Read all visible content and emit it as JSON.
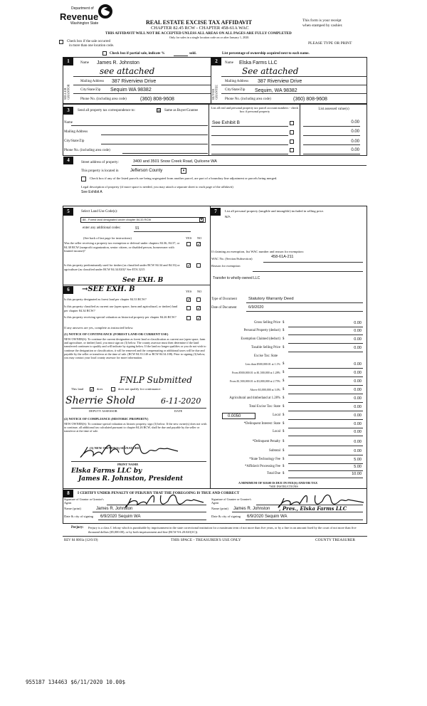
{
  "header": {
    "agency_line1": "Department of",
    "agency_name": "Revenue",
    "agency_state": "Washington State",
    "title": "REAL ESTATE EXCISE TAX AFFIDAVIT",
    "subtitle": "CHAPTER 82.45 RCW - CHAPTER 458-61A WAC",
    "warning": "THIS AFFIDAVIT WILL NOT BE ACCEPTED UNLESS ALL AREAS ON ALL PAGES ARE FULLY COMPLETED",
    "single_location_note": "Only for sales in a single location code on or after January 1, 2020.",
    "receipt_note_1": "This form is your receipt",
    "receipt_note_2": "when stamped by cashier.",
    "print_note": "PLEASE TYPE OR PRINT",
    "multi_location_check": "Check box if the sale occurred",
    "multi_location_check_2": "in more than one location code.",
    "partial_sale": "Check box if partial sale, indicate %",
    "partial_sold": "sold.",
    "ownership_note": "List percentage of ownership acquired next to each name."
  },
  "seller": {
    "num": "1",
    "side_label": "SELLER GRANTOR",
    "name_label": "Name",
    "name": "James R. Johnston",
    "handwritten": "see attached",
    "address_label": "Mailing Address",
    "address": "387 Riverview Drive",
    "city_label": "City/State/Zip",
    "city": "Sequim WA  98382",
    "phone_label": "Phone No. (including area code)",
    "phone": "(360) 808-9608"
  },
  "buyer": {
    "num": "2",
    "side_label": "BUYER GRANTEE",
    "name_label": "Name",
    "name": "Elska Farms LLC",
    "handwritten": "See attached",
    "address_label": "Mailing Address",
    "address": "387 Riverview Drive",
    "city_label": "City/State/Zip",
    "city": "Sequim, WA  98382",
    "phone_label": "Phone No. (including area code)",
    "phone": "(360) 808-9608"
  },
  "section3": {
    "num": "3",
    "label": "Send all property tax correspondence to:",
    "same_as": "Same as Buyer/Grantee",
    "same_checked": "☒",
    "name_label": "Name",
    "address_label": "Mailing Address",
    "city_label": "City/State/Zip",
    "phone_label": "Phone No. (including area code)",
    "parcel_header": "List all real and personal property tax parcel account numbers - check box if personal property",
    "assessed_header": "List assessed value(s)",
    "parcels": [
      {
        "number": "See Exhibit B",
        "value": "0.00"
      },
      {
        "number": "",
        "value": "0.00"
      },
      {
        "number": "",
        "value": "0.00"
      },
      {
        "number": "",
        "value": "0.00"
      }
    ]
  },
  "section4": {
    "num": "4",
    "street_label": "Street address of property:",
    "street": "3400 and 3501 Snow Creek Road, Quilcene WA",
    "located_label": "This property is located in",
    "county": "Jefferson County",
    "segregate_check": "Check box if any of the listed parcels are being segregated from another parcel, are part of a boundary line adjustment or parcels being merged.",
    "legal_label": "Legal description of property (if more space is needed, you may attach a separate sheet to each page of the affidavit)",
    "legal": "See Exhibit A"
  },
  "section5": {
    "num": "5",
    "label": "Select Land Use Code(s):",
    "code": "88 - Forest land designated under chapter 84.33 RCW",
    "additional_label": "enter any additional codes:",
    "additional": "91",
    "see_back": "(See back of last page for instructions)",
    "yes": "YES",
    "no": "NO",
    "q1": "Was the seller receiving a property tax exemption or deferral under chapters 84.36, 84.37, or 84.38 RCW (nonprofit organization, senior citizen, or disabled person, homeowner with limited income)?",
    "q1_answer": "no",
    "q2": "Is this property predominantly used for timber (as classified under RCW 84.34 and 84.33) or agriculture (as classified under RCW 84.34.020)? See ETA 3215",
    "q2_answer": "yes",
    "q2_handwritten": "See EXH. B"
  },
  "section6": {
    "num": "6",
    "handwritten": "→SEE EXH. B",
    "yes": "YES",
    "no": "NO",
    "q1": "Is this property designated as forest land per chapter 84.33 RCW?",
    "q1_answer": "yes",
    "q2": "Is this property classified as current use (open space, farm and agricultural, or timber) land per chapter 84.34 RCW?",
    "q2_answer": "no",
    "q3": "Is this property receiving special valuation as historical property per chapter 84.26 RCW?",
    "q3_answer": "no",
    "if_yes": "If any answers are yes, complete as instructed below.",
    "notice1_title": "(1) NOTICE OF CONTINUANCE (FOREST LAND OR CURRENT USE)",
    "notice1_text": "NEW OWNER(S): To continue the current designation as forest land or classification as current use (open space, farm and agriculture, or timber) land, you must sign on (3) below. The county assessor must then determine if the land transferred continues to qualify and will indicate by signing below. If the land no longer qualifies or you do not wish to continue the designation or classification, it will be removed and the compensating or additional taxes will be due and payable by the seller or transferor at the time of sale. (RCW 84.33.140 or RCW 84.34.108). Prior to signing (3) below, you may contact your local county assessor for more information.",
    "fnlp_handwritten": "FNLP Submitted",
    "this_land": "This land",
    "does": "does",
    "does_not": "does not qualify for continuance.",
    "assessor_handwritten": "Sherrie Shold",
    "assessor_date": "6-11-2020",
    "deputy_label": "DEPUTY ASSESSOR",
    "date_label": "DATE",
    "notice2_title": "(2) NOTICE OF COMPLIANCE (HISTORIC PROPERTY)",
    "notice2_text": "NEW OWNER(S): To continue special valuation as historic property, sign (3) below. If the new owner(s) does not wish to continue, all additional tax calculated pursuant to chapter 84.26 RCW, shall be due and payable by the seller or transferor at the time of sale.",
    "signature_label": "(3) NEW OWNER(S) SIGNATURE",
    "print_name_label": "PRINT NAME",
    "print_name_1": "Elska Farms LLC by",
    "print_name_2": "James R. Johnston, President"
  },
  "section7": {
    "num": "7",
    "label": "List all personal property (tangible and intangible) included in selling price.",
    "personal_property": "N/A",
    "exemption_label": "If claiming an exemption, list WAC number and reason for exemption:",
    "wac_label": "WAC No. (Section/Subsection)",
    "wac": "458-61A-211",
    "reason_label": "Reason for exemption",
    "reason": "Transfer to wholly-owned LLC",
    "doc_type_label": "Type of Document",
    "doc_type": "Statutory Warranty Deed",
    "doc_date_label": "Date of Document",
    "doc_date": "6/9/2020",
    "local_rate": "0.0050",
    "excise_heading": "Excise Tax: State",
    "amounts": [
      {
        "label": "Gross Selling Price",
        "value": "0.00"
      },
      {
        "label": "Personal Property (deduct)",
        "value": "0.00"
      },
      {
        "label": "Exemption Claimed (deduct)",
        "value": "0.00"
      },
      {
        "label": "Taxable Selling Price",
        "value": "0.00"
      },
      {
        "label": "Less than $500,000.01 at 1.1%",
        "value": "0.00"
      },
      {
        "label": "From $500,000.01 to $1,500,000 at 1.28%",
        "value": "0.00"
      },
      {
        "label": "From $1,500,000.01 to $3,000,000 at 2.75%",
        "value": "0.00"
      },
      {
        "label": "Above $3,000,000 at 3.0%",
        "value": "0.00"
      },
      {
        "label": "Agricultural and timberland at 1.28%",
        "value": "0.00"
      },
      {
        "label": "Total Excise Tax: State",
        "value": "0.00"
      },
      {
        "label": "Local",
        "value": "0.00"
      },
      {
        "label": "*Delinquent Interest: State",
        "value": "0.00"
      },
      {
        "label": "Local",
        "value": "0.00"
      },
      {
        "label": "*Delinquent Penalty",
        "value": "0.00"
      },
      {
        "label": "Subtotal",
        "value": "0.00"
      },
      {
        "label": "*State Technology Fee",
        "value": "5.00"
      },
      {
        "label": "*Affidavit Processing Fee",
        "value": "5.00"
      },
      {
        "label": "Total Due",
        "value": "10.00"
      }
    ],
    "currency": "$",
    "minimum_note": "A MINIMUM OF $10.00 IS DUE IN FEE(S) AND/OR TAX",
    "see_instructions": "*SEE INSTRUCTIONS"
  },
  "section8": {
    "num": "8",
    "certify": "I CERTIFY UNDER PENALTY OF PERJURY THAT THE FOREGOING IS TRUE AND CORRECT",
    "grantor_sig_label": "Signature of Grantor or Grantor's Agent",
    "grantee_sig_label": "Signature of Grantee or Grantee's Agent",
    "name_label": "Name (print)",
    "grantor_name": "James R. Johnston",
    "grantee_name": "James R. Johnston",
    "grantee_handwritten": ", Pres., Elska Farms LLC",
    "date_label": "Date & city of signing",
    "grantor_date": "6/9/2020 Sequim WA",
    "grantee_date": "6/9/2020 Sequim WA"
  },
  "perjury": {
    "label": "Perjury:",
    "text": "Perjury is a class C felony which is punishable by imprisonment in the state correctional institution for a maximum term of not more than five years, or by a fine in an amount fixed by the court of not more than five thousand dollars ($5,000.00), or by both imprisonment and fine (RCW 9A.20.020(1C))."
  },
  "footer": {
    "form_no": "REV 84 0001a (12/6/19)",
    "treasurer_space": "THIS SPACE - TREASURER'S USE ONLY",
    "county_treasurer": "COUNTY TREASURER"
  },
  "stamp": "955187 134463 $6/11/2020 10.00$"
}
